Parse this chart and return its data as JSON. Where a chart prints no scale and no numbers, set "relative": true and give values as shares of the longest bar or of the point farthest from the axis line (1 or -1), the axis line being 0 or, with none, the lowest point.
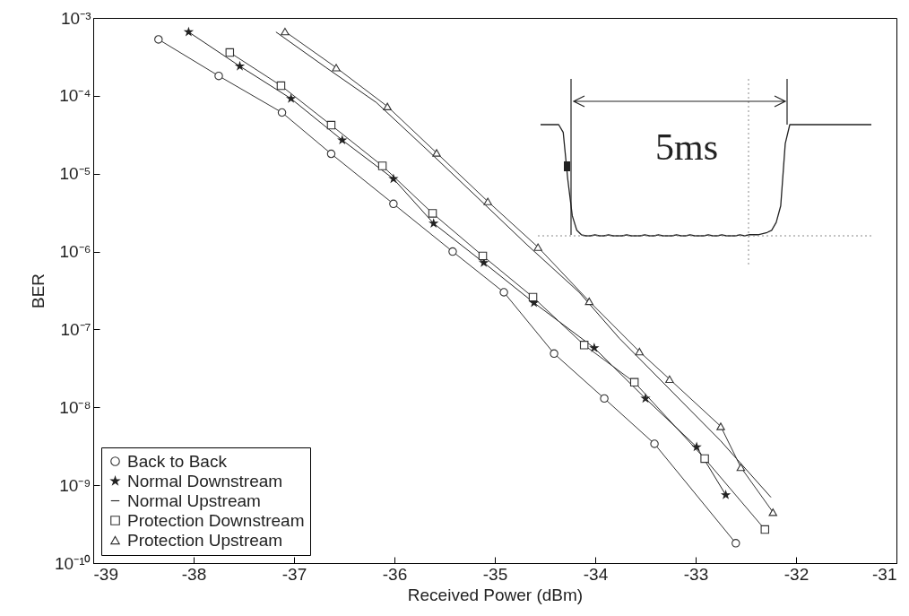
{
  "chart_data": [
    {
      "type": "line",
      "xlabel": "Received Power (dBm)",
      "ylabel": "BER",
      "log": "y",
      "xlim": [
        -39,
        -31
      ],
      "xticks": [
        -39,
        -38,
        -37,
        -36,
        -35,
        -34,
        -33,
        -32,
        -31
      ],
      "ylim": [
        1e-10,
        0.001
      ],
      "yticks": [
        {
          "value": 0.001,
          "label": "10⁻³"
        },
        {
          "value": 0.0001,
          "label": "10⁻⁴"
        },
        {
          "value": 1e-05,
          "label": "10⁻⁵"
        },
        {
          "value": 1e-06,
          "label": "10⁻⁶"
        },
        {
          "value": 1e-07,
          "label": "10⁻⁷"
        },
        {
          "value": 1e-08,
          "label": "10⁻⁸"
        },
        {
          "value": 1e-09,
          "label": "10⁻⁹"
        },
        {
          "value": 1e-10,
          "label": "10⁻¹⁰"
        }
      ],
      "grid": false,
      "legend": "bottom left",
      "series": [
        {
          "name": "Back to Back",
          "color": "#333333",
          "marker": "circle",
          "x": [
            -38.35,
            -37.75,
            -37.12,
            -36.63,
            -36.01,
            -35.42,
            -34.91,
            -34.41,
            -33.91,
            -33.41,
            -32.6
          ],
          "values": [
            0.00053,
            0.00018,
            6.1e-05,
            1.8e-05,
            4.1e-06,
            1e-06,
            3e-07,
            4.9e-08,
            1.3e-08,
            3.4e-09,
            1.8e-10
          ]
        },
        {
          "name": "Normal Downstream",
          "color": "#222222",
          "marker": "star",
          "x": [
            -38.05,
            -37.54,
            -37.03,
            -36.52,
            -36.01,
            -35.61,
            -35.11,
            -34.61,
            -34.01,
            -33.5,
            -32.99,
            -32.7
          ],
          "values": [
            0.00066,
            0.00024,
            9.2e-05,
            2.7e-05,
            8.6e-06,
            2.3e-06,
            7.2e-07,
            2.2e-07,
            5.8e-08,
            1.3e-08,
            3.1e-09,
            7.5e-10
          ]
        },
        {
          "name": "Normal Upstream",
          "color": "#222222",
          "marker": "none",
          "x": [
            -37.18,
            -36.68,
            -36.18,
            -35.67,
            -35.17,
            -34.67,
            -34.16,
            -33.76,
            -32.75,
            -32.25
          ],
          "values": [
            0.00066,
            0.00023,
            8.2e-05,
            2e-05,
            4.9e-06,
            1.19e-06,
            3e-07,
            7.7e-08,
            3.7e-09,
            7e-10
          ]
        },
        {
          "name": "Protection Downstream",
          "color": "#333333",
          "marker": "square",
          "x": [
            -37.64,
            -37.13,
            -36.63,
            -36.12,
            -35.62,
            -35.12,
            -34.62,
            -34.11,
            -33.61,
            -32.91,
            -32.31
          ],
          "values": [
            0.00036,
            0.000135,
            4.2e-05,
            1.26e-05,
            3.1e-06,
            8.8e-07,
            2.6e-07,
            6.3e-08,
            2.1e-08,
            2.2e-09,
            2.7e-10
          ]
        },
        {
          "name": "Protection Upstream",
          "color": "#333333",
          "marker": "triangle",
          "x": [
            -37.09,
            -36.58,
            -36.07,
            -35.58,
            -35.07,
            -34.57,
            -34.06,
            -33.56,
            -33.26,
            -32.75,
            -32.55,
            -32.23
          ],
          "values": [
            0.00067,
            0.00023,
            7.3e-05,
            1.85e-05,
            4.4e-06,
            1.14e-06,
            2.3e-07,
            5.2e-08,
            2.3e-08,
            5.7e-09,
            1.7e-09,
            4.5e-10
          ]
        }
      ]
    },
    {
      "type": "line",
      "relative": true,
      "annotations": [
        "5ms"
      ],
      "categories": [
        null,
        null,
        null,
        null,
        null,
        null,
        null,
        null,
        null,
        null,
        null,
        null,
        null,
        null,
        null,
        null,
        null,
        null,
        null,
        null,
        null,
        null,
        null,
        null,
        null,
        null,
        null,
        null,
        null,
        null,
        null,
        null,
        null,
        null,
        null,
        null,
        null,
        null,
        null,
        null,
        null,
        null,
        null,
        null,
        null,
        null,
        null,
        null,
        null,
        null,
        null,
        null,
        null,
        null,
        null,
        null,
        null,
        null,
        null,
        null,
        null,
        null,
        null,
        null,
        null,
        null,
        null,
        null,
        null,
        null,
        null,
        null,
        null,
        null
      ],
      "series": [
        {
          "color": "#222222",
          "values": [
            1,
            1,
            1,
            1,
            1,
            0.93,
            0.51,
            0.18,
            0.05,
            0.01,
            0,
            0,
            0.01,
            0,
            0,
            0.01,
            0,
            0,
            0,
            0.01,
            0,
            0,
            0,
            0.01,
            0,
            0,
            0.01,
            0,
            0,
            0,
            0.01,
            0,
            0,
            0.01,
            0,
            0,
            0,
            0.01,
            0,
            0,
            0.01,
            0,
            0,
            0,
            0.01,
            0,
            0.01,
            0.01,
            0.01,
            0.02,
            0.03,
            0.05,
            0.12,
            0.27,
            0.83,
            1,
            1,
            1,
            1,
            1,
            1,
            1,
            1,
            1,
            1,
            1,
            1,
            1,
            1,
            1,
            1,
            1,
            1,
            1
          ]
        }
      ]
    }
  ]
}
